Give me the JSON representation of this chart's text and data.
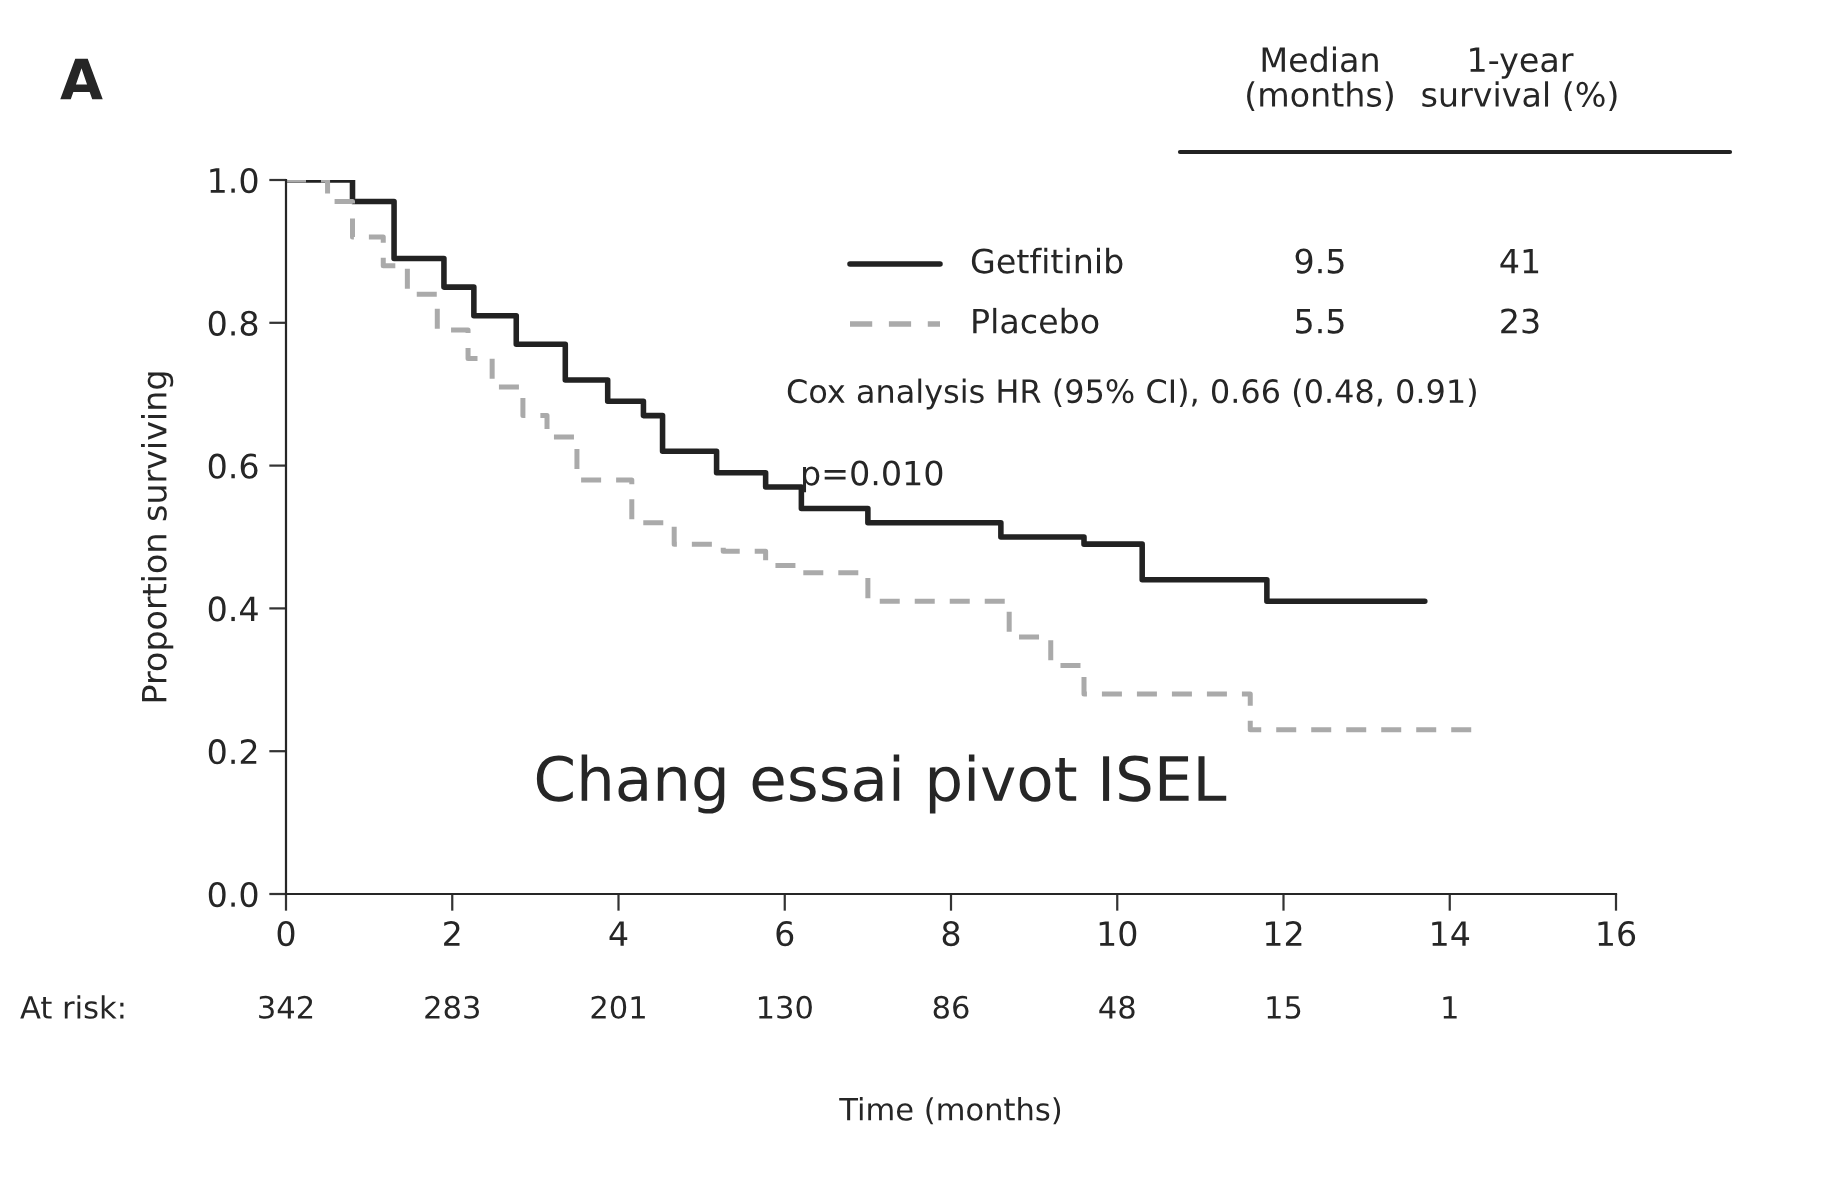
{
  "chart_data": {
    "type": "step",
    "xlabel": "Time (months)",
    "ylabel": "Proportion surviving",
    "xlim": [
      0,
      16
    ],
    "xticks": [
      0,
      2,
      4,
      6,
      8,
      10,
      12,
      14,
      16
    ],
    "ylim": [
      0,
      1.0
    ],
    "yticks": [
      {
        "value": 0,
        "label": "0.0"
      },
      {
        "value": 0.2,
        "label": "0.2"
      },
      {
        "value": 0.4,
        "label": "0.4"
      },
      {
        "value": 0.6,
        "label": "0.6"
      },
      {
        "value": 0.8,
        "label": "0.8"
      },
      {
        "value": 1.0,
        "label": "1.0"
      }
    ],
    "grid": false,
    "legend": "top right",
    "marker": "none",
    "series": [
      {
        "name": "Getfitinib",
        "color": "#222222",
        "line_style": "solid",
        "x": [
          0,
          0.2,
          0.8,
          1.3,
          1.9,
          2.26,
          2.77,
          3.36,
          3.87,
          4.3,
          4.53,
          5.18,
          5.77,
          6.2,
          7.0,
          8.5,
          8.6,
          9.6,
          10.3,
          11.8,
          13.7
        ],
        "values": [
          1.0,
          1.0,
          0.97,
          0.89,
          0.85,
          0.81,
          0.77,
          0.72,
          0.69,
          0.67,
          0.62,
          0.59,
          0.57,
          0.54,
          0.52,
          0.52,
          0.5,
          0.49,
          0.44,
          0.41,
          0.41
        ]
      },
      {
        "name": "Placebo",
        "color": "#aaaaaa",
        "line_style": "dashed",
        "x": [
          0,
          0.5,
          0.8,
          1.17,
          1.46,
          1.82,
          2.19,
          2.48,
          2.85,
          3.14,
          3.5,
          4.16,
          4.67,
          5.26,
          5.77,
          6.2,
          6.5,
          7.0,
          8.2,
          8.7,
          9.2,
          9.6,
          11.6,
          14.3
        ],
        "values": [
          1.0,
          0.97,
          0.92,
          0.88,
          0.84,
          0.79,
          0.75,
          0.71,
          0.67,
          0.64,
          0.58,
          0.52,
          0.49,
          0.48,
          0.46,
          0.45,
          0.45,
          0.41,
          0.41,
          0.36,
          0.32,
          0.28,
          0.23,
          0.23
        ]
      }
    ],
    "annotations": [
      "A",
      "Median\n(months)",
      "1-year\nsurvival (%)",
      "9.5",
      "41",
      "5.5",
      "23",
      "Cox analysis HR (95% CI), 0.66 (0.48, 0.91)",
      "p=0.010",
      "Chang essai pivot ISEL",
      "At risk:",
      "342",
      "283",
      "201",
      "130",
      "86",
      "48",
      "15",
      "1"
    ]
  }
}
